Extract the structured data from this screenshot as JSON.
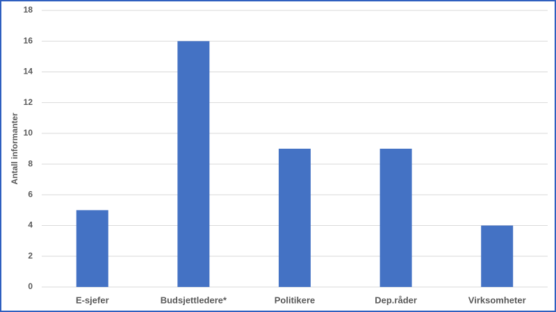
{
  "chart_data": {
    "type": "bar",
    "y_label": "Antall informanter",
    "categories": [
      "E-sjefer",
      "Budsjettledere*",
      "Politikere",
      "Dep.råder",
      "Virksomheter"
    ],
    "values": [
      5,
      16,
      9,
      9,
      4
    ],
    "color": "#4472c4",
    "ylim": [
      0,
      18
    ],
    "yticks": [
      0,
      2,
      4,
      6,
      8,
      10,
      12,
      14,
      16,
      18
    ],
    "grid": true
  }
}
